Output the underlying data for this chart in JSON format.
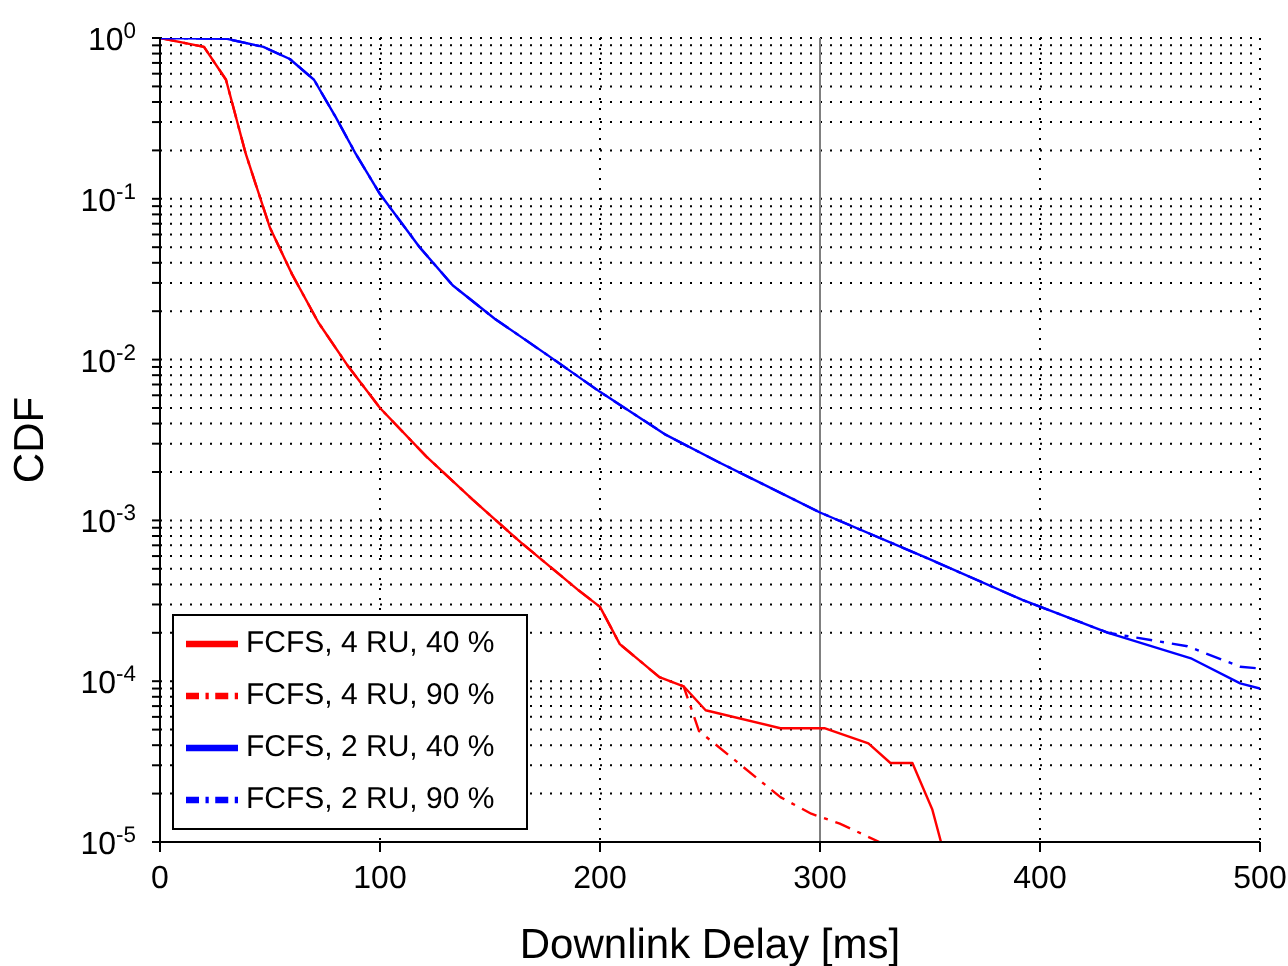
{
  "chart_data": {
    "type": "line",
    "xlabel": "Downlink Delay [ms]",
    "ylabel": "CDF",
    "log": "y",
    "grid": true,
    "legend": "bottom left",
    "xlim": [
      0,
      500
    ],
    "xticks": [
      0,
      100,
      200,
      300,
      400,
      500
    ],
    "ylim": [
      1e-05,
      1
    ],
    "yticks": [
      {
        "value": 1e-05,
        "label": "10$^{-5}$"
      },
      {
        "value": 2e-05,
        "label": null
      },
      {
        "value": 3e-05,
        "label": null
      },
      {
        "value": 4e-05,
        "label": null
      },
      {
        "value": 5e-05,
        "label": null
      },
      {
        "value": 6e-05,
        "label": null
      },
      {
        "value": 7e-05,
        "label": null
      },
      {
        "value": 8e-05,
        "label": null
      },
      {
        "value": 9e-05,
        "label": null
      },
      {
        "value": 0.0001,
        "label": "10$^{-4}$"
      },
      {
        "value": 0.0002,
        "label": null
      },
      {
        "value": 0.0003,
        "label": null
      },
      {
        "value": 0.0004,
        "label": null
      },
      {
        "value": 0.0005,
        "label": null
      },
      {
        "value": 0.0006,
        "label": null
      },
      {
        "value": 0.0007,
        "label": null
      },
      {
        "value": 0.0008,
        "label": null
      },
      {
        "value": 0.0009,
        "label": null
      },
      {
        "value": 0.001,
        "label": "10$^{-3}$"
      },
      {
        "value": 0.002,
        "label": null
      },
      {
        "value": 0.003,
        "label": null
      },
      {
        "value": 0.004,
        "label": null
      },
      {
        "value": 0.005,
        "label": null
      },
      {
        "value": 0.006,
        "label": null
      },
      {
        "value": 0.007,
        "label": null
      },
      {
        "value": 0.008,
        "label": null
      },
      {
        "value": 0.009,
        "label": null
      },
      {
        "value": 0.01,
        "label": "10$^{-2}$"
      },
      {
        "value": 0.02,
        "label": null
      },
      {
        "value": 0.03,
        "label": null
      },
      {
        "value": 0.04,
        "label": null
      },
      {
        "value": 0.05,
        "label": null
      },
      {
        "value": 0.06,
        "label": null
      },
      {
        "value": 0.07,
        "label": null
      },
      {
        "value": 0.08,
        "label": null
      },
      {
        "value": 0.09,
        "label": null
      },
      {
        "value": 0.1,
        "label": "10$^{-1}$"
      },
      {
        "value": 0.2,
        "label": null
      },
      {
        "value": 0.3,
        "label": null
      },
      {
        "value": 0.4,
        "label": null
      },
      {
        "value": 0.5,
        "label": null
      },
      {
        "value": 0.6,
        "label": null
      },
      {
        "value": 0.7,
        "label": null
      },
      {
        "value": 0.8,
        "label": null
      },
      {
        "value": 0.9,
        "label": null
      },
      {
        "value": 1,
        "label": "10$^{0}$"
      }
    ],
    "ref_lines": [
      {
        "axis": "x",
        "value": 300,
        "label": null,
        "color": "#808080"
      }
    ],
    "series": [
      {
        "name": "FCFS, 4 RU, 40 %",
        "color": "#ff0000",
        "line_style": "solid",
        "x": [
          0,
          20,
          30,
          39,
          50,
          60,
          72,
          85,
          100,
          121,
          142,
          164,
          190,
          200,
          209,
          227,
          238,
          248,
          282,
          302,
          322,
          332,
          342,
          351,
          355
        ],
        "values": [
          1,
          0.88,
          0.55,
          0.19,
          0.066,
          0.034,
          0.017,
          0.0093,
          0.005,
          0.0025,
          0.00135,
          0.00073,
          0.00037,
          0.00029,
          0.00017,
          0.000106,
          9.3e-05,
          6.6e-05,
          5.1e-05,
          5.1e-05,
          4.1e-05,
          3.1e-05,
          3.1e-05,
          1.6e-05,
          1e-05
        ]
      },
      {
        "name": "FCFS, 4 RU, 90 %",
        "color": "#ff0000",
        "line_style": "dashed",
        "x": [
          0,
          20,
          30,
          39,
          50,
          60,
          72,
          85,
          100,
          121,
          142,
          164,
          190,
          200,
          209,
          227,
          238,
          245,
          282,
          296,
          309,
          327
        ],
        "values": [
          1,
          0.88,
          0.55,
          0.19,
          0.066,
          0.034,
          0.017,
          0.0093,
          0.005,
          0.0025,
          0.00135,
          0.00073,
          0.00037,
          0.00029,
          0.00017,
          0.000106,
          9.3e-05,
          4.9e-05,
          1.9e-05,
          1.5e-05,
          1.3e-05,
          1e-05
        ]
      },
      {
        "name": "FCFS, 2 RU, 40 %",
        "color": "#0000ff",
        "line_style": "solid",
        "x": [
          0,
          30,
          47,
          59,
          70,
          80,
          89,
          100,
          118,
          133,
          152,
          176,
          200,
          230,
          254,
          300,
          349,
          392,
          431,
          469,
          491,
          500
        ],
        "values": [
          1,
          0.99,
          0.88,
          0.74,
          0.55,
          0.32,
          0.19,
          0.107,
          0.05,
          0.029,
          0.018,
          0.0107,
          0.0063,
          0.0034,
          0.0023,
          0.00112,
          0.00058,
          0.00032,
          0.0002,
          0.000138,
          9.7e-05,
          9e-05
        ]
      },
      {
        "name": "FCFS, 2 RU, 90 %",
        "color": "#0000ff",
        "line_style": "dashed",
        "x": [
          0,
          30,
          47,
          59,
          70,
          80,
          89,
          100,
          118,
          133,
          152,
          176,
          200,
          230,
          254,
          300,
          349,
          392,
          431,
          467,
          491,
          500
        ],
        "values": [
          1,
          0.99,
          0.88,
          0.74,
          0.55,
          0.32,
          0.19,
          0.107,
          0.05,
          0.029,
          0.018,
          0.0107,
          0.0063,
          0.0034,
          0.0023,
          0.00112,
          0.00058,
          0.00032,
          0.0002,
          0.000165,
          0.000123,
          0.00012
        ]
      }
    ]
  }
}
